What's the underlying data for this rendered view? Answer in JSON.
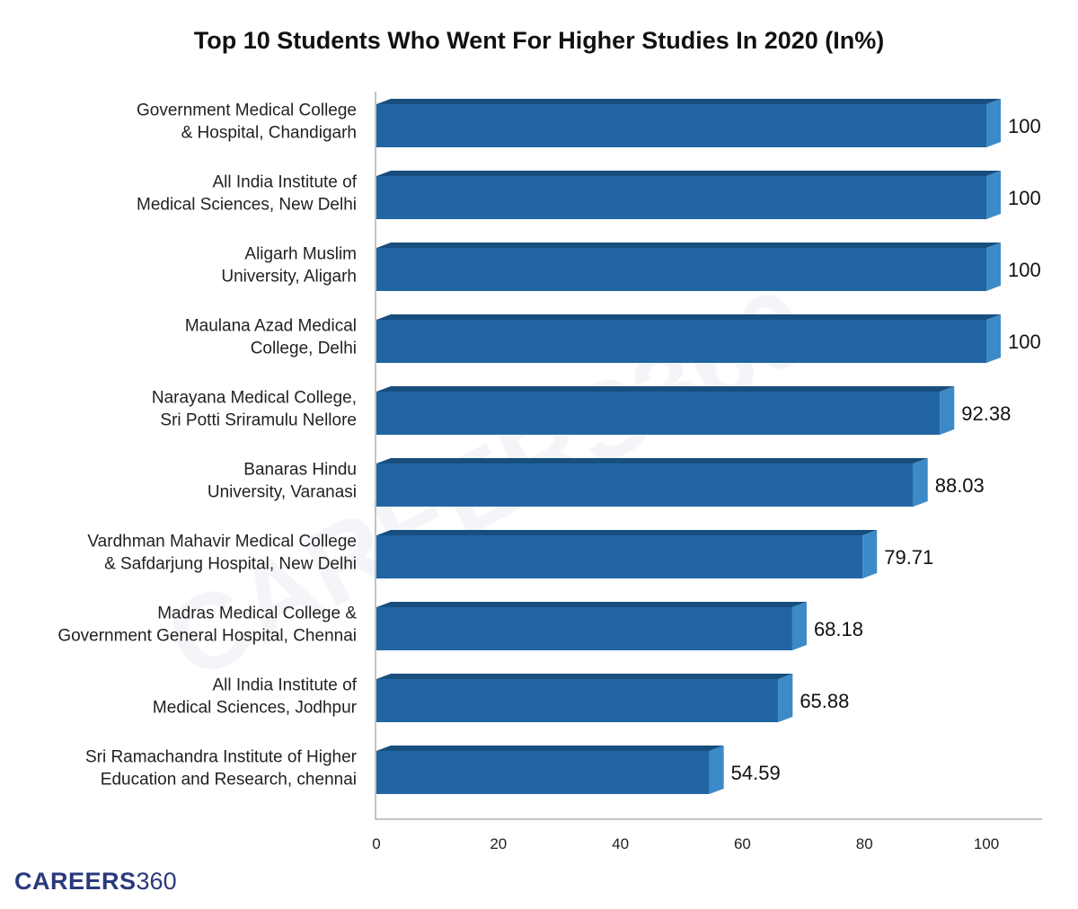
{
  "title": "Top 10 Students Who Went For Higher Studies In 2020 (In%)",
  "logo": {
    "bold": "CAREERS",
    "num": "360"
  },
  "colors": {
    "bar_front": "#2166a3",
    "bar_top": "#184e7e",
    "bar_side": "#3d8ac8",
    "axis": "#888888"
  },
  "chart_data": {
    "type": "bar",
    "orientation": "horizontal",
    "title": "Top 10 Students Who Went For Higher Studies In 2020 (In%)",
    "xlabel": "",
    "ylabel": "",
    "xlim": [
      0,
      100
    ],
    "ticks": [
      "0",
      "20",
      "40",
      "60",
      "80",
      "100"
    ],
    "grid": false,
    "categories": [
      [
        "Government Medical College",
        "& Hospital, Chandigarh"
      ],
      [
        "All India Institute of",
        "Medical Sciences, New Delhi"
      ],
      [
        "Aligarh Muslim",
        "University, Aligarh"
      ],
      [
        "Maulana Azad Medical",
        "College, Delhi"
      ],
      [
        "Narayana Medical College,",
        "Sri Potti Sriramulu Nellore"
      ],
      [
        "Banaras Hindu",
        "University, Varanasi"
      ],
      [
        "Vardhman Mahavir Medical College",
        "& Safdarjung Hospital, New Delhi"
      ],
      [
        "Madras Medical College &",
        "Government General Hospital, Chennai"
      ],
      [
        "All India Institute of",
        "Medical Sciences, Jodhpur"
      ],
      [
        "Sri Ramachandra Institute of Higher",
        "Education and Research, chennai"
      ]
    ],
    "values": [
      100,
      100,
      100,
      100,
      92.38,
      88.03,
      79.71,
      68.18,
      65.88,
      54.59
    ],
    "value_labels": [
      "100",
      "100",
      "100",
      "100",
      "92.38",
      "88.03",
      "79.71",
      "68.18",
      "65.88",
      "54.59"
    ]
  }
}
